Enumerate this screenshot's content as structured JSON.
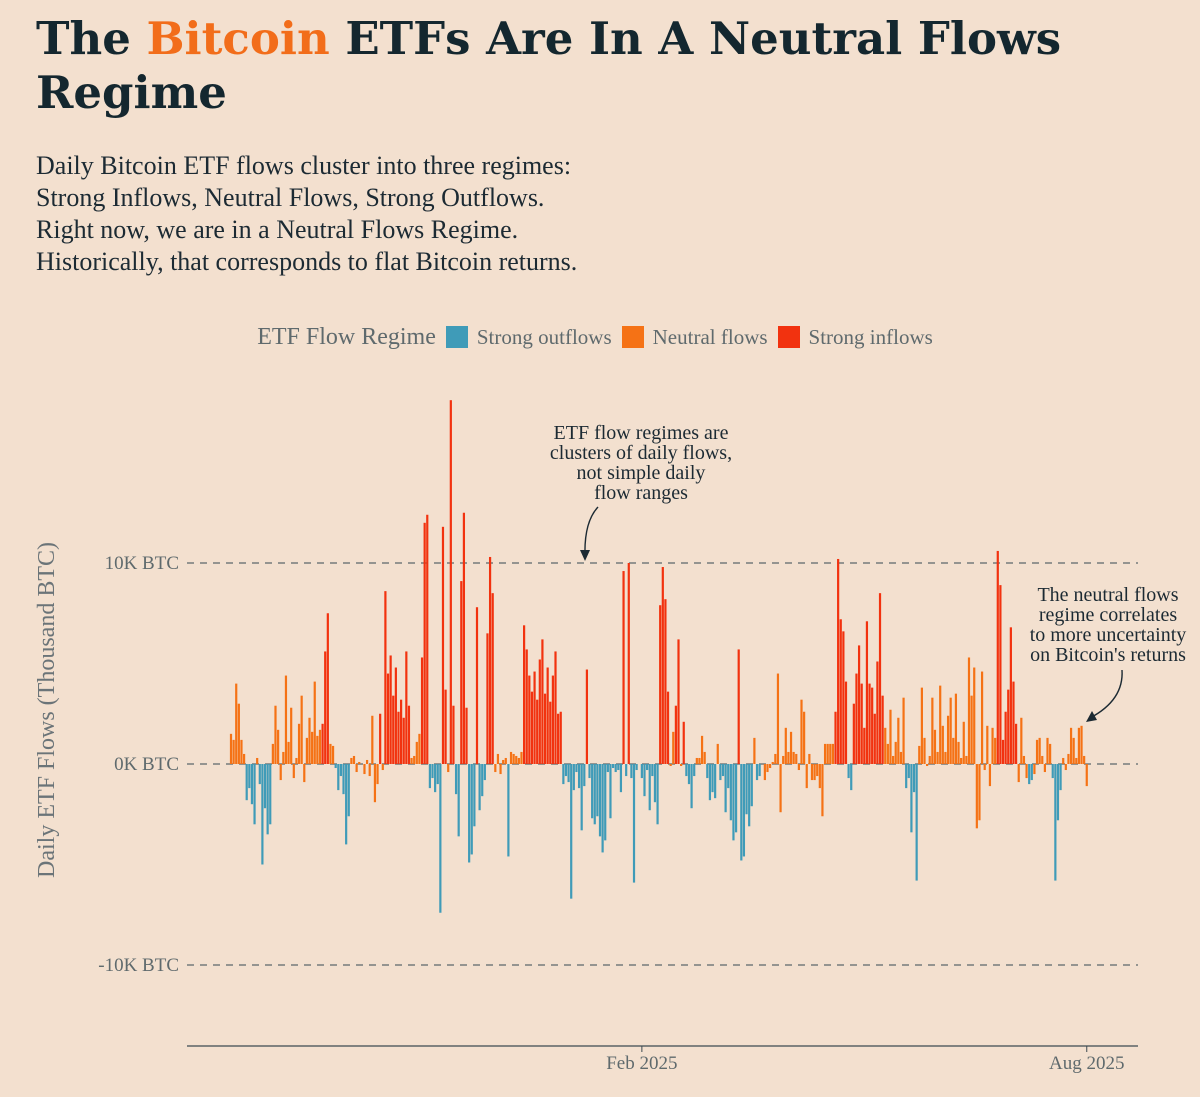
{
  "header": {
    "title_prefix": "The ",
    "title_accent": "Bitcoin",
    "title_rest": " ETFs Are In A Neutral Flows Regime",
    "subtitle_lines": [
      "Daily Bitcoin ETF flows cluster into three regimes:",
      "Strong Inflows, Neutral Flows, Strong Outflows.",
      "Right now, we are in a Neutral Flows Regime.",
      "Historically, that corresponds to flat Bitcoin returns."
    ]
  },
  "legend": {
    "title": "ETF Flow Regime",
    "items": [
      {
        "label": "Strong outflows",
        "color": "#3f9bb8"
      },
      {
        "label": "Neutral flows",
        "color": "#f57215"
      },
      {
        "label": "Strong inflows",
        "color": "#f2320f"
      }
    ]
  },
  "chart_data": {
    "type": "bar",
    "title": "The Bitcoin ETFs Are In A Neutral Flows Regime",
    "ylabel": "Daily ETF Flows (Thousand BTC)",
    "xlabel": "",
    "ylim": [
      -14,
      18
    ],
    "y_ticks": [
      {
        "value": 10,
        "label": "10K BTC"
      },
      {
        "value": 0,
        "label": "0K BTC"
      },
      {
        "value": -10,
        "label": "-10K BTC"
      }
    ],
    "x_ticks": [
      {
        "index": 157,
        "label": "Feb 2025"
      },
      {
        "index": 327,
        "label": "Aug 2025"
      }
    ],
    "regime_colors": {
      "O": "#3f9bb8",
      "N": "#f57215",
      "S": "#f2320f"
    },
    "series_note": "daily flows in thousand BTC; each bar has a regime code O/N/S",
    "bars": [
      [
        0,
        1.5,
        "N"
      ],
      [
        1,
        1.2,
        "N"
      ],
      [
        2,
        4.0,
        "N"
      ],
      [
        3,
        3.0,
        "N"
      ],
      [
        4,
        1.2,
        "N"
      ],
      [
        5,
        0.5,
        "N"
      ],
      [
        6,
        -1.8,
        "O"
      ],
      [
        7,
        -1.2,
        "O"
      ],
      [
        8,
        -2.0,
        "O"
      ],
      [
        9,
        -3.0,
        "O"
      ],
      [
        10,
        0.3,
        "N"
      ],
      [
        11,
        -1.0,
        "O"
      ],
      [
        12,
        -5.0,
        "O"
      ],
      [
        13,
        -2.2,
        "O"
      ],
      [
        14,
        -3.5,
        "O"
      ],
      [
        15,
        -3.0,
        "O"
      ],
      [
        16,
        1.0,
        "N"
      ],
      [
        17,
        2.9,
        "N"
      ],
      [
        18,
        1.7,
        "N"
      ],
      [
        19,
        -0.8,
        "N"
      ],
      [
        20,
        0.6,
        "N"
      ],
      [
        21,
        4.4,
        "N"
      ],
      [
        22,
        1.1,
        "N"
      ],
      [
        23,
        2.8,
        "N"
      ],
      [
        24,
        -0.7,
        "N"
      ],
      [
        25,
        0.3,
        "N"
      ],
      [
        26,
        2.0,
        "N"
      ],
      [
        27,
        3.4,
        "N"
      ],
      [
        28,
        -0.9,
        "N"
      ],
      [
        29,
        1.3,
        "N"
      ],
      [
        30,
        2.3,
        "N"
      ],
      [
        31,
        1.6,
        "N"
      ],
      [
        32,
        4.1,
        "N"
      ],
      [
        33,
        1.4,
        "N"
      ],
      [
        34,
        1.7,
        "N"
      ],
      [
        35,
        2.0,
        "S"
      ],
      [
        36,
        5.6,
        "S"
      ],
      [
        37,
        7.5,
        "S"
      ],
      [
        38,
        1.0,
        "N"
      ],
      [
        39,
        0.9,
        "N"
      ],
      [
        40,
        -0.2,
        "O"
      ],
      [
        41,
        -1.3,
        "O"
      ],
      [
        42,
        -0.6,
        "O"
      ],
      [
        43,
        -1.5,
        "O"
      ],
      [
        44,
        -4.0,
        "O"
      ],
      [
        45,
        -2.6,
        "O"
      ],
      [
        46,
        0.3,
        "N"
      ],
      [
        47,
        0.4,
        "N"
      ],
      [
        48,
        -0.4,
        "N"
      ],
      [
        49,
        0.1,
        "N"
      ],
      [
        50,
        0.0,
        "N"
      ],
      [
        51,
        -0.5,
        "N"
      ],
      [
        52,
        0.2,
        "N"
      ],
      [
        53,
        -0.6,
        "N"
      ],
      [
        54,
        2.4,
        "N"
      ],
      [
        55,
        -1.9,
        "N"
      ],
      [
        56,
        -1.0,
        "N"
      ],
      [
        57,
        2.5,
        "S"
      ],
      [
        58,
        -0.3,
        "N"
      ],
      [
        59,
        8.6,
        "S"
      ],
      [
        60,
        4.5,
        "S"
      ],
      [
        61,
        5.4,
        "S"
      ],
      [
        62,
        3.4,
        "S"
      ],
      [
        63,
        4.8,
        "S"
      ],
      [
        64,
        2.6,
        "S"
      ],
      [
        65,
        3.2,
        "S"
      ],
      [
        66,
        2.3,
        "S"
      ],
      [
        67,
        5.6,
        "S"
      ],
      [
        68,
        2.9,
        "S"
      ],
      [
        69,
        0.3,
        "N"
      ],
      [
        70,
        0.4,
        "N"
      ],
      [
        71,
        1.1,
        "N"
      ],
      [
        72,
        1.5,
        "N"
      ],
      [
        73,
        5.3,
        "S"
      ],
      [
        74,
        12.0,
        "S"
      ],
      [
        75,
        12.4,
        "S"
      ],
      [
        76,
        -1.2,
        "O"
      ],
      [
        77,
        -0.7,
        "O"
      ],
      [
        78,
        -1.4,
        "O"
      ],
      [
        79,
        -1.0,
        "O"
      ],
      [
        80,
        -7.4,
        "O"
      ],
      [
        81,
        11.8,
        "S"
      ],
      [
        82,
        3.7,
        "S"
      ],
      [
        83,
        -0.4,
        "N"
      ],
      [
        84,
        18.1,
        "S"
      ],
      [
        85,
        2.9,
        "S"
      ],
      [
        86,
        -1.5,
        "O"
      ],
      [
        87,
        -3.6,
        "O"
      ],
      [
        88,
        9.1,
        "S"
      ],
      [
        89,
        12.5,
        "S"
      ],
      [
        90,
        2.8,
        "S"
      ],
      [
        91,
        -4.9,
        "O"
      ],
      [
        92,
        -4.5,
        "O"
      ],
      [
        93,
        -3.1,
        "O"
      ],
      [
        94,
        7.8,
        "S"
      ],
      [
        95,
        -2.3,
        "O"
      ],
      [
        96,
        -1.6,
        "O"
      ],
      [
        97,
        -0.8,
        "O"
      ],
      [
        98,
        6.5,
        "S"
      ],
      [
        99,
        10.3,
        "S"
      ],
      [
        100,
        8.5,
        "S"
      ],
      [
        101,
        -0.4,
        "N"
      ],
      [
        102,
        0.5,
        "N"
      ],
      [
        103,
        -0.5,
        "N"
      ],
      [
        104,
        0.2,
        "N"
      ],
      [
        105,
        0.3,
        "N"
      ],
      [
        106,
        -4.6,
        "O"
      ],
      [
        107,
        0.6,
        "N"
      ],
      [
        108,
        0.5,
        "N"
      ],
      [
        109,
        0.4,
        "N"
      ],
      [
        110,
        0.3,
        "N"
      ],
      [
        111,
        0.6,
        "N"
      ],
      [
        112,
        6.9,
        "S"
      ],
      [
        113,
        5.7,
        "S"
      ],
      [
        114,
        4.4,
        "S"
      ],
      [
        115,
        3.6,
        "S"
      ],
      [
        116,
        4.6,
        "S"
      ],
      [
        117,
        3.2,
        "S"
      ],
      [
        118,
        5.2,
        "S"
      ],
      [
        119,
        6.2,
        "S"
      ],
      [
        120,
        3.5,
        "S"
      ],
      [
        121,
        4.8,
        "S"
      ],
      [
        122,
        3.1,
        "S"
      ],
      [
        123,
        4.4,
        "S"
      ],
      [
        124,
        5.6,
        "S"
      ],
      [
        125,
        2.5,
        "S"
      ],
      [
        126,
        2.6,
        "S"
      ],
      [
        127,
        -1.0,
        "O"
      ],
      [
        128,
        -0.6,
        "O"
      ],
      [
        129,
        -0.9,
        "O"
      ],
      [
        130,
        -6.7,
        "O"
      ],
      [
        131,
        -1.3,
        "O"
      ],
      [
        132,
        -0.4,
        "O"
      ],
      [
        133,
        -1.2,
        "O"
      ],
      [
        134,
        -3.3,
        "O"
      ],
      [
        135,
        -1.1,
        "O"
      ],
      [
        136,
        4.7,
        "S"
      ],
      [
        137,
        -0.7,
        "O"
      ],
      [
        138,
        -2.7,
        "O"
      ],
      [
        139,
        -3.0,
        "O"
      ],
      [
        140,
        -2.6,
        "O"
      ],
      [
        141,
        -3.6,
        "O"
      ],
      [
        142,
        -4.4,
        "O"
      ],
      [
        143,
        -3.8,
        "O"
      ],
      [
        144,
        -0.4,
        "O"
      ],
      [
        145,
        -2.7,
        "O"
      ],
      [
        146,
        -0.2,
        "O"
      ],
      [
        147,
        -0.4,
        "O"
      ],
      [
        148,
        -0.3,
        "O"
      ],
      [
        149,
        -1.4,
        "O"
      ],
      [
        150,
        9.6,
        "S"
      ],
      [
        151,
        -0.6,
        "O"
      ],
      [
        152,
        10.0,
        "S"
      ],
      [
        153,
        -0.7,
        "O"
      ],
      [
        154,
        -5.9,
        "O"
      ],
      [
        155,
        -0.3,
        "O"
      ],
      [
        156,
        0.0,
        "N"
      ],
      [
        157,
        -0.7,
        "O"
      ],
      [
        158,
        -1.6,
        "O"
      ],
      [
        159,
        -0.3,
        "O"
      ],
      [
        160,
        -2.3,
        "O"
      ],
      [
        161,
        -0.6,
        "O"
      ],
      [
        162,
        -1.9,
        "O"
      ],
      [
        163,
        -3.0,
        "O"
      ],
      [
        164,
        7.9,
        "S"
      ],
      [
        165,
        9.8,
        "S"
      ],
      [
        166,
        8.2,
        "S"
      ],
      [
        167,
        3.6,
        "S"
      ],
      [
        168,
        -0.1,
        "N"
      ],
      [
        169,
        1.6,
        "N"
      ],
      [
        170,
        2.9,
        "S"
      ],
      [
        171,
        6.2,
        "S"
      ],
      [
        172,
        -0.1,
        "N"
      ],
      [
        173,
        2.1,
        "S"
      ],
      [
        174,
        -0.6,
        "O"
      ],
      [
        175,
        -1.0,
        "O"
      ],
      [
        176,
        -2.2,
        "O"
      ],
      [
        177,
        -0.6,
        "O"
      ],
      [
        178,
        0.3,
        "N"
      ],
      [
        179,
        0.3,
        "N"
      ],
      [
        180,
        1.4,
        "N"
      ],
      [
        181,
        0.6,
        "N"
      ],
      [
        182,
        -0.7,
        "O"
      ],
      [
        183,
        -1.8,
        "O"
      ],
      [
        184,
        -1.4,
        "O"
      ],
      [
        185,
        -1.7,
        "O"
      ],
      [
        186,
        1.0,
        "N"
      ],
      [
        187,
        -0.8,
        "O"
      ],
      [
        188,
        -0.6,
        "O"
      ],
      [
        189,
        -2.4,
        "O"
      ],
      [
        190,
        -1.2,
        "O"
      ],
      [
        191,
        -2.8,
        "O"
      ],
      [
        192,
        -3.8,
        "O"
      ],
      [
        193,
        -3.4,
        "O"
      ],
      [
        194,
        5.7,
        "S"
      ],
      [
        195,
        -4.8,
        "O"
      ],
      [
        196,
        -4.6,
        "O"
      ],
      [
        197,
        -2.5,
        "O"
      ],
      [
        198,
        -3.1,
        "O"
      ],
      [
        199,
        -2.1,
        "O"
      ],
      [
        200,
        1.3,
        "N"
      ],
      [
        201,
        -0.8,
        "O"
      ],
      [
        202,
        -0.6,
        "O"
      ],
      [
        203,
        0.0,
        "N"
      ],
      [
        204,
        -0.8,
        "N"
      ],
      [
        205,
        -0.4,
        "N"
      ],
      [
        206,
        -0.2,
        "N"
      ],
      [
        207,
        0.1,
        "N"
      ],
      [
        208,
        0.5,
        "N"
      ],
      [
        209,
        4.5,
        "N"
      ],
      [
        210,
        -2.4,
        "N"
      ],
      [
        211,
        0.4,
        "N"
      ],
      [
        212,
        1.8,
        "N"
      ],
      [
        213,
        0.6,
        "N"
      ],
      [
        214,
        1.6,
        "N"
      ],
      [
        215,
        0.6,
        "N"
      ],
      [
        216,
        0.5,
        "N"
      ],
      [
        217,
        -0.3,
        "N"
      ],
      [
        218,
        3.2,
        "N"
      ],
      [
        219,
        2.6,
        "N"
      ],
      [
        220,
        -1.2,
        "N"
      ],
      [
        221,
        0.5,
        "N"
      ],
      [
        222,
        -0.8,
        "N"
      ],
      [
        223,
        -0.8,
        "N"
      ],
      [
        224,
        -0.6,
        "N"
      ],
      [
        225,
        -1.2,
        "N"
      ],
      [
        226,
        -2.6,
        "N"
      ],
      [
        227,
        1.0,
        "N"
      ],
      [
        228,
        1.0,
        "N"
      ],
      [
        229,
        1.0,
        "N"
      ],
      [
        230,
        1.0,
        "N"
      ],
      [
        231,
        2.6,
        "S"
      ],
      [
        232,
        10.2,
        "S"
      ],
      [
        233,
        7.2,
        "S"
      ],
      [
        234,
        6.6,
        "S"
      ],
      [
        235,
        4.1,
        "S"
      ],
      [
        236,
        -0.7,
        "O"
      ],
      [
        237,
        -1.3,
        "O"
      ],
      [
        238,
        3.0,
        "S"
      ],
      [
        239,
        4.5,
        "S"
      ],
      [
        240,
        5.9,
        "S"
      ],
      [
        241,
        4.0,
        "S"
      ],
      [
        242,
        1.8,
        "S"
      ],
      [
        243,
        7.1,
        "S"
      ],
      [
        244,
        4.0,
        "S"
      ],
      [
        245,
        3.8,
        "S"
      ],
      [
        246,
        2.5,
        "S"
      ],
      [
        247,
        5.1,
        "S"
      ],
      [
        248,
        8.5,
        "S"
      ],
      [
        249,
        3.4,
        "S"
      ],
      [
        250,
        1.8,
        "N"
      ],
      [
        251,
        1.0,
        "N"
      ],
      [
        252,
        2.7,
        "N"
      ],
      [
        253,
        0.4,
        "N"
      ],
      [
        254,
        1.1,
        "N"
      ],
      [
        255,
        2.3,
        "N"
      ],
      [
        256,
        0.6,
        "N"
      ],
      [
        257,
        3.3,
        "N"
      ],
      [
        258,
        -1.2,
        "O"
      ],
      [
        259,
        -0.7,
        "O"
      ],
      [
        260,
        -3.4,
        "O"
      ],
      [
        261,
        -1.4,
        "O"
      ],
      [
        262,
        -5.8,
        "O"
      ],
      [
        263,
        0.9,
        "N"
      ],
      [
        264,
        3.8,
        "N"
      ],
      [
        265,
        1.3,
        "N"
      ],
      [
        266,
        -0.1,
        "N"
      ],
      [
        267,
        0.4,
        "N"
      ],
      [
        268,
        3.3,
        "N"
      ],
      [
        269,
        1.7,
        "N"
      ],
      [
        270,
        0.6,
        "N"
      ],
      [
        271,
        3.9,
        "N"
      ],
      [
        272,
        1.9,
        "N"
      ],
      [
        273,
        0.6,
        "N"
      ],
      [
        274,
        2.4,
        "N"
      ],
      [
        275,
        3.3,
        "N"
      ],
      [
        276,
        1.3,
        "N"
      ],
      [
        277,
        3.5,
        "N"
      ],
      [
        278,
        1.1,
        "N"
      ],
      [
        279,
        0.3,
        "N"
      ],
      [
        280,
        2.1,
        "N"
      ],
      [
        281,
        0.4,
        "N"
      ],
      [
        282,
        5.3,
        "N"
      ],
      [
        283,
        3.4,
        "N"
      ],
      [
        284,
        4.8,
        "N"
      ],
      [
        285,
        -3.2,
        "N"
      ],
      [
        286,
        -2.8,
        "N"
      ],
      [
        287,
        4.6,
        "N"
      ],
      [
        288,
        -0.3,
        "N"
      ],
      [
        289,
        1.9,
        "N"
      ],
      [
        290,
        -1.1,
        "N"
      ],
      [
        291,
        1.8,
        "N"
      ],
      [
        292,
        1.3,
        "N"
      ],
      [
        293,
        10.6,
        "S"
      ],
      [
        294,
        8.9,
        "S"
      ],
      [
        295,
        1.2,
        "S"
      ],
      [
        296,
        2.6,
        "S"
      ],
      [
        297,
        3.7,
        "S"
      ],
      [
        298,
        6.8,
        "S"
      ],
      [
        299,
        4.1,
        "S"
      ],
      [
        300,
        2.0,
        "S"
      ],
      [
        301,
        -0.9,
        "N"
      ],
      [
        302,
        2.3,
        "N"
      ],
      [
        303,
        0.4,
        "N"
      ],
      [
        304,
        -0.7,
        "N"
      ],
      [
        305,
        -1.0,
        "O"
      ],
      [
        306,
        -0.8,
        "O"
      ],
      [
        307,
        -0.5,
        "N"
      ],
      [
        308,
        1.2,
        "N"
      ],
      [
        309,
        1.3,
        "N"
      ],
      [
        310,
        0.4,
        "N"
      ],
      [
        311,
        -0.4,
        "N"
      ],
      [
        312,
        1.3,
        "N"
      ],
      [
        313,
        1.0,
        "N"
      ],
      [
        314,
        -0.7,
        "O"
      ],
      [
        315,
        -5.8,
        "O"
      ],
      [
        316,
        -2.8,
        "O"
      ],
      [
        317,
        -1.3,
        "O"
      ],
      [
        318,
        0.3,
        "N"
      ],
      [
        319,
        -0.3,
        "N"
      ],
      [
        320,
        0.5,
        "N"
      ],
      [
        321,
        1.8,
        "N"
      ],
      [
        322,
        1.3,
        "N"
      ],
      [
        323,
        0.3,
        "N"
      ],
      [
        324,
        1.8,
        "N"
      ],
      [
        325,
        1.9,
        "N"
      ],
      [
        326,
        0.4,
        "N"
      ],
      [
        327,
        -1.1,
        "N"
      ]
    ]
  },
  "annotations": {
    "regimes_note": [
      "ETF flow regimes are",
      "clusters of daily flows,",
      "not simple daily",
      "flow ranges"
    ],
    "neutral_note": [
      "The neutral flows",
      "regime correlates",
      "to more uncertainty",
      "on Bitcoin's returns"
    ]
  }
}
